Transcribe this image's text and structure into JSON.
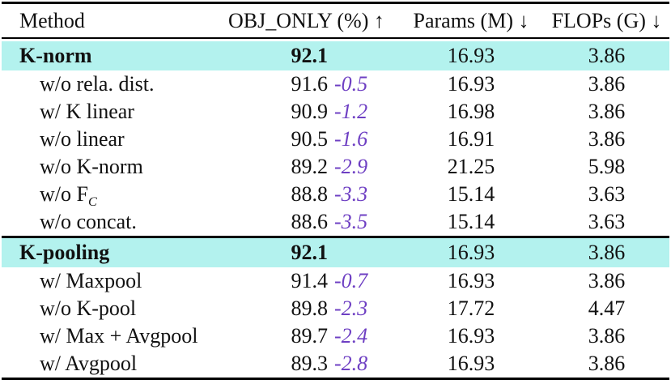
{
  "table": {
    "columns": [
      "Method",
      "OBJ_ONLY (%) ↑",
      "Params (M) ↓",
      "FLOPs (G) ↓"
    ],
    "rows": [
      {
        "method": "K-norm",
        "obj": "92.1",
        "params": "16.93",
        "flops": "3.86"
      },
      {
        "method": "w/o rela. dist.",
        "obj": "91.6",
        "delta": "-0.5",
        "params": "16.93",
        "flops": "3.86"
      },
      {
        "method": "w/ K linear",
        "obj": "90.9",
        "delta": "-1.2",
        "params": "16.98",
        "flops": "3.86"
      },
      {
        "method": "w/o linear",
        "obj": "90.5",
        "delta": "-1.6",
        "params": "16.91",
        "flops": "3.86"
      },
      {
        "method": "w/o K-norm",
        "obj": "89.2",
        "delta": "-2.9",
        "params": "21.25",
        "flops": "5.98"
      },
      {
        "method": "w/o F",
        "method_sub": "C",
        "obj": "88.8",
        "delta": "-3.3",
        "params": "15.14",
        "flops": "3.63"
      },
      {
        "method": "w/o concat.",
        "obj": "88.6",
        "delta": "-3.5",
        "params": "15.14",
        "flops": "3.63"
      },
      {
        "method": "K-pooling",
        "obj": "92.1",
        "params": "16.93",
        "flops": "3.86"
      },
      {
        "method": "w/ Maxpool",
        "obj": "91.4",
        "delta": "-0.7",
        "params": "16.93",
        "flops": "3.86"
      },
      {
        "method": "w/o K-pool",
        "obj": "89.8",
        "delta": "-2.3",
        "params": "17.72",
        "flops": "4.47"
      },
      {
        "method": "w/ Max + Avgpool",
        "obj": "89.7",
        "delta": "-2.4",
        "params": "16.93",
        "flops": "3.86"
      },
      {
        "method": "w/ Avgpool",
        "obj": "89.3",
        "delta": "-2.8",
        "params": "16.93",
        "flops": "3.86"
      }
    ]
  },
  "colors": {
    "highlight": "#b3f2ee",
    "delta": "#6e3fc3",
    "text": "#111111",
    "rule": "#000000"
  }
}
